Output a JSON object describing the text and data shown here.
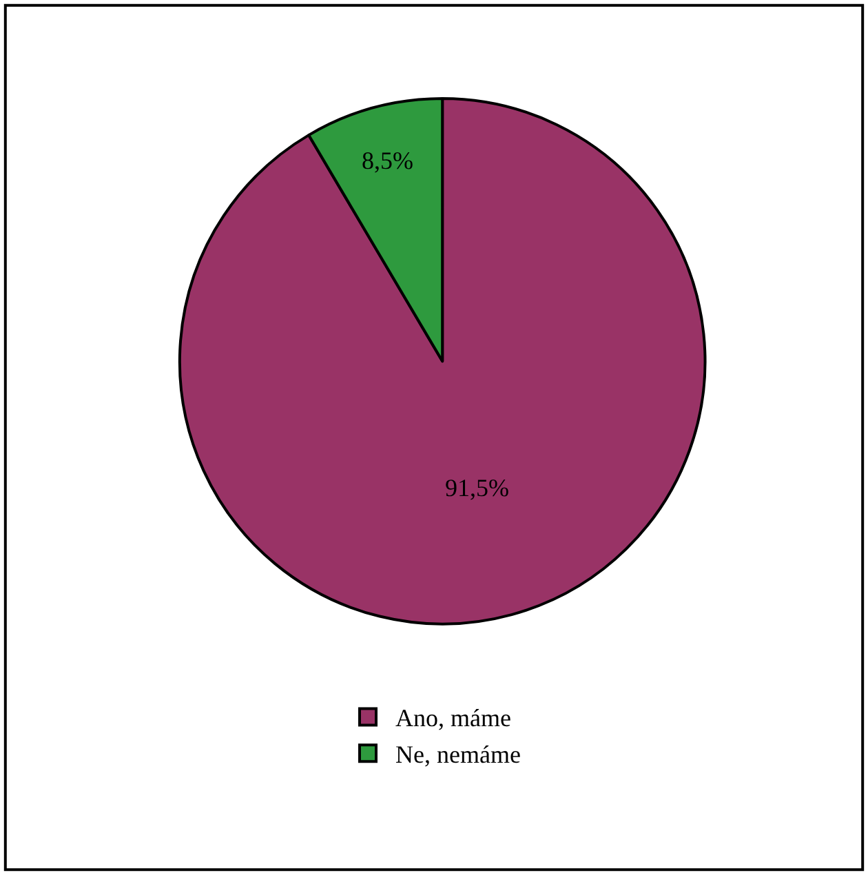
{
  "chart_data": {
    "type": "pie",
    "categories": [
      "Ano, máme",
      "Ne, nemáme"
    ],
    "values": [
      91.5,
      8.5
    ],
    "colors": [
      "#993366",
      "#2e9a3e"
    ],
    "value_labels": [
      "91,5%",
      "8,5%"
    ],
    "legend": "bottom"
  }
}
